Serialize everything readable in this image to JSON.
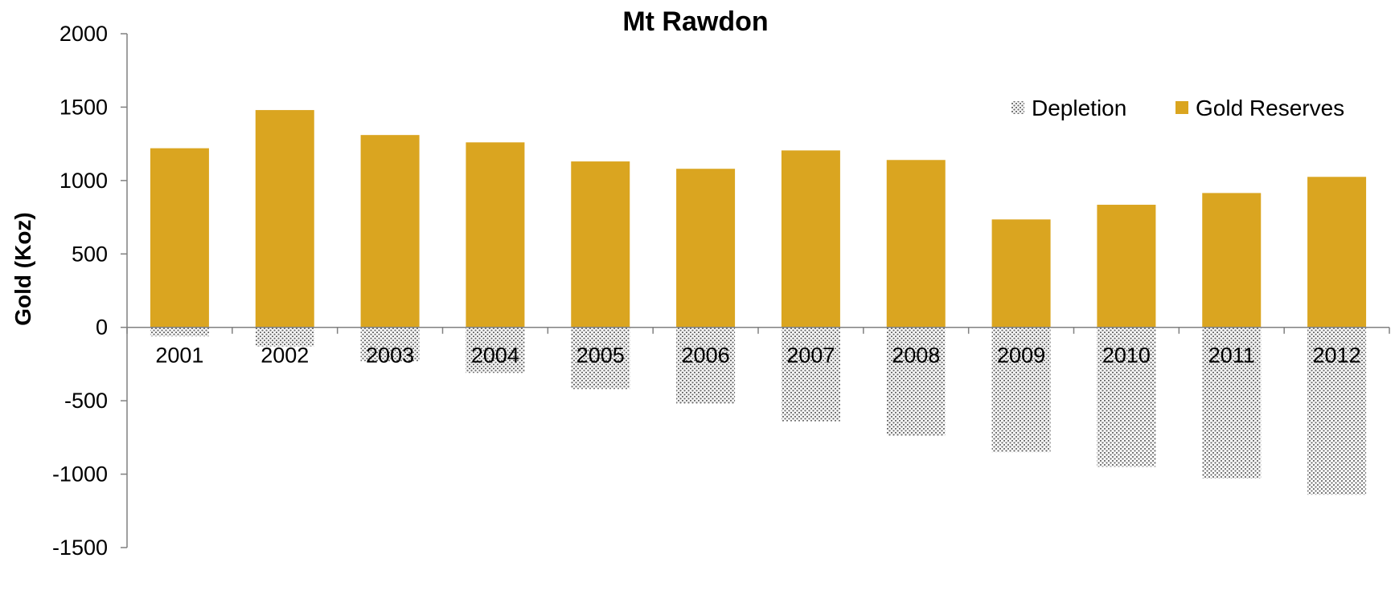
{
  "chart_data": {
    "type": "bar",
    "title": "Mt Rawdon",
    "xlabel": "",
    "ylabel": "Gold (Koz)",
    "categories": [
      "2001",
      "2002",
      "2003",
      "2004",
      "2005",
      "2006",
      "2007",
      "2008",
      "2009",
      "2010",
      "2011",
      "2012"
    ],
    "series": [
      {
        "name": "Depletion",
        "values": [
          -60,
          -130,
          -230,
          -310,
          -420,
          -520,
          -640,
          -740,
          -850,
          -950,
          -1030,
          -1140
        ],
        "color": "#9a9a9a",
        "pattern": "dotted"
      },
      {
        "name": "Gold Reserves",
        "values": [
          1220,
          1480,
          1310,
          1260,
          1130,
          1080,
          1205,
          1140,
          735,
          835,
          915,
          1025
        ],
        "color": "#DAA520"
      }
    ],
    "ylim": [
      -1500,
      2000
    ],
    "yticks": [
      "2000",
      "1500",
      "1000",
      "500",
      "0",
      "-500",
      "-1000",
      "-1500"
    ],
    "ytick_values": [
      2000,
      1500,
      1000,
      500,
      0,
      -500,
      -1000,
      -1500
    ],
    "grid": false,
    "legend_position": "top-right"
  }
}
